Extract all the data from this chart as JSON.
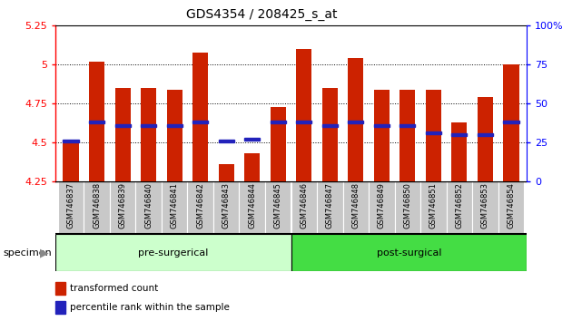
{
  "title": "GDS4354 / 208425_s_at",
  "categories": [
    "GSM746837",
    "GSM746838",
    "GSM746839",
    "GSM746840",
    "GSM746841",
    "GSM746842",
    "GSM746843",
    "GSM746844",
    "GSM746845",
    "GSM746846",
    "GSM746847",
    "GSM746848",
    "GSM746849",
    "GSM746850",
    "GSM746851",
    "GSM746852",
    "GSM746853",
    "GSM746854"
  ],
  "red_values": [
    4.51,
    5.02,
    4.85,
    4.85,
    4.84,
    5.08,
    4.36,
    4.43,
    4.73,
    5.1,
    4.85,
    5.04,
    4.84,
    4.84,
    4.84,
    4.63,
    4.79,
    5.0
  ],
  "blue_values": [
    4.51,
    4.63,
    4.61,
    4.61,
    4.61,
    4.63,
    4.51,
    4.52,
    4.63,
    4.63,
    4.61,
    4.63,
    4.61,
    4.61,
    4.56,
    4.55,
    4.55,
    4.63
  ],
  "ylim_left": [
    4.25,
    5.25
  ],
  "ylim_right": [
    0,
    100
  ],
  "yticks_left": [
    4.25,
    4.5,
    4.75,
    5.0,
    5.25
  ],
  "ytick_labels_left": [
    "4.25",
    "4.5",
    "4.75",
    "5",
    "5.25"
  ],
  "ytick_labels_right": [
    "0",
    "25",
    "50",
    "75",
    "100%"
  ],
  "bar_color": "#cc2200",
  "blue_color": "#2222bb",
  "pre_surgical_count": 9,
  "post_surgical_count": 9,
  "pre_surgical_label": "pre-surgerical",
  "post_surgical_label": "post-surgical",
  "specimen_label": "specimen",
  "legend_red": "transformed count",
  "legend_blue": "percentile rank within the sample",
  "bg_group_pre": "#ccffcc",
  "bg_group_post": "#44dd44",
  "xtick_bg": "#c8c8c8",
  "ybase": 4.25,
  "grid_dotted_at": [
    4.5,
    4.75,
    5.0
  ],
  "bar_width": 0.6
}
